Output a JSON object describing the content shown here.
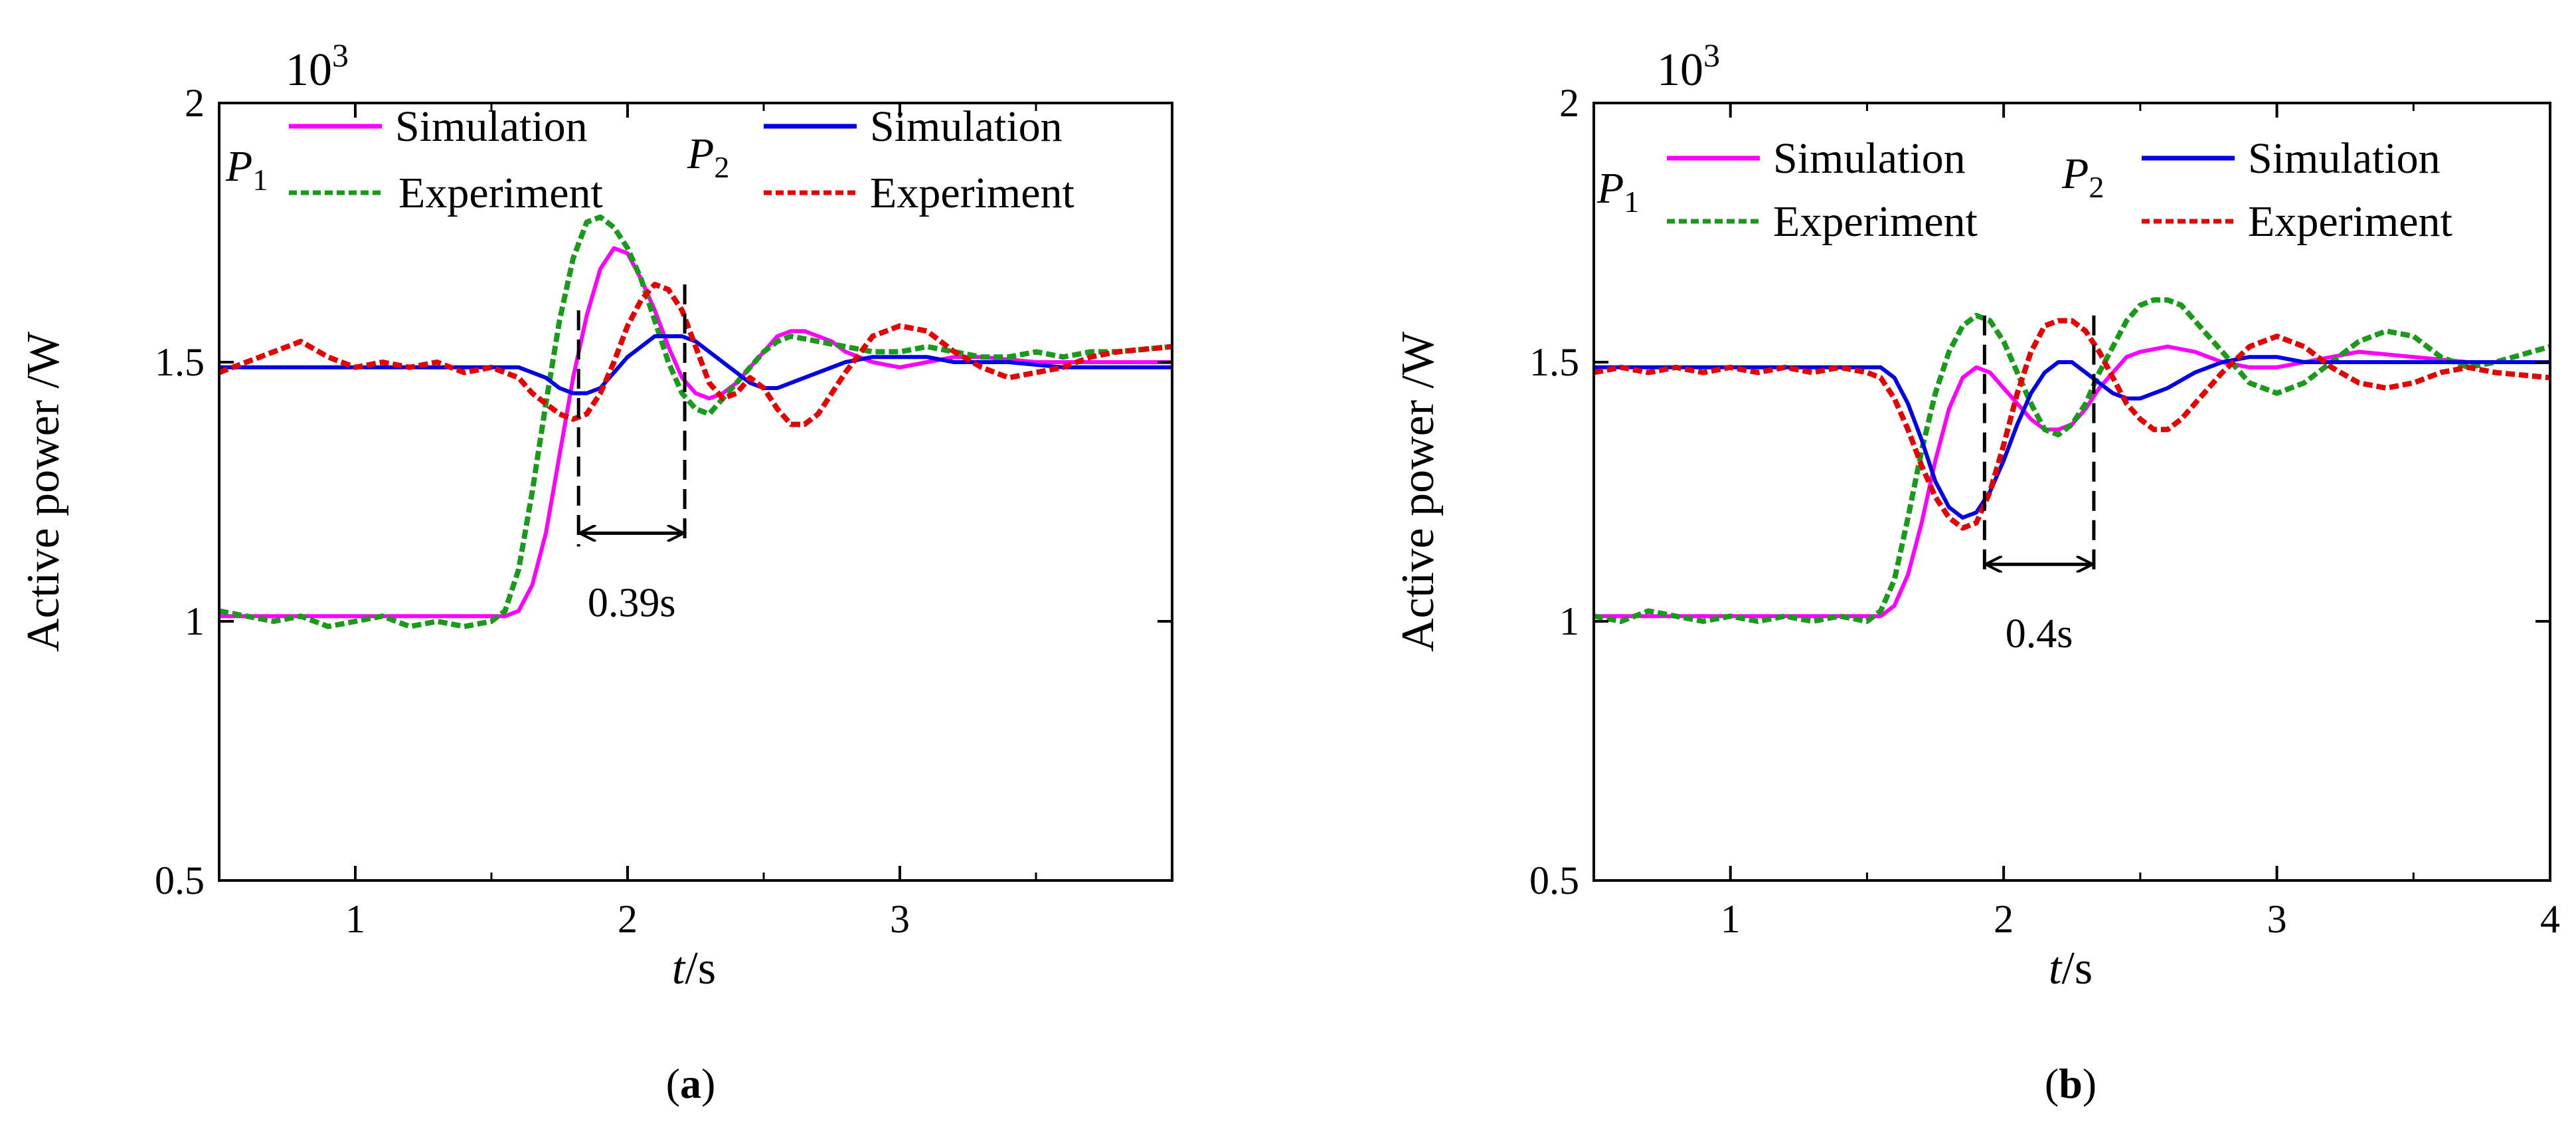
{
  "chart_data": [
    {
      "type": "line",
      "caption_open": "(",
      "caption_letter": "a",
      "caption_close": ")",
      "ylabel": "Active power /W",
      "xlabel_var": "t",
      "xlabel_unit": "/s",
      "y_exponent_base": "10",
      "y_exponent_power": "3",
      "xlim": [
        0.5,
        4.0
      ],
      "ylim": [
        0.5,
        2.0
      ],
      "xticks": [
        1,
        2,
        3
      ],
      "xtick_labels": [
        "1",
        "2",
        "3"
      ],
      "yticks": [
        0.5,
        1,
        1.5,
        2
      ],
      "ytick_labels": [
        "0.5",
        "1",
        "1.5",
        "2"
      ],
      "legend_groups": [
        {
          "symbol": "P",
          "sub": "1",
          "entries": [
            "Simulation",
            "Experiment"
          ]
        },
        {
          "symbol": "P",
          "sub": "2",
          "entries": [
            "Simulation",
            "Experiment"
          ]
        }
      ],
      "annotation": {
        "text": "0.39s",
        "x_start": 1.82,
        "x_end": 2.21,
        "y_arrow": 1.17
      },
      "series": [
        {
          "name": "P1 Simulation",
          "color": "#ff00ff",
          "style": "solid",
          "x": [
            0.5,
            1.55,
            1.6,
            1.65,
            1.7,
            1.75,
            1.8,
            1.85,
            1.9,
            1.95,
            2.0,
            2.05,
            2.1,
            2.15,
            2.2,
            2.25,
            2.3,
            2.35,
            2.4,
            2.45,
            2.5,
            2.55,
            2.6,
            2.65,
            2.7,
            2.75,
            2.8,
            2.9,
            3.0,
            3.1,
            3.2,
            3.3,
            3.5,
            3.7,
            4.0
          ],
          "y": [
            1.01,
            1.01,
            1.02,
            1.07,
            1.17,
            1.32,
            1.47,
            1.59,
            1.68,
            1.72,
            1.71,
            1.66,
            1.6,
            1.53,
            1.47,
            1.44,
            1.43,
            1.44,
            1.46,
            1.49,
            1.52,
            1.55,
            1.56,
            1.56,
            1.55,
            1.54,
            1.52,
            1.5,
            1.49,
            1.5,
            1.51,
            1.51,
            1.5,
            1.5,
            1.5
          ]
        },
        {
          "name": "P1 Experiment",
          "color": "#1a9a1a",
          "style": "dashed",
          "x": [
            0.5,
            0.6,
            0.7,
            0.8,
            0.9,
            1.0,
            1.1,
            1.2,
            1.3,
            1.4,
            1.5,
            1.55,
            1.6,
            1.65,
            1.7,
            1.75,
            1.8,
            1.85,
            1.9,
            1.95,
            2.0,
            2.05,
            2.1,
            2.15,
            2.2,
            2.25,
            2.3,
            2.35,
            2.4,
            2.45,
            2.5,
            2.55,
            2.6,
            2.7,
            2.8,
            2.9,
            3.0,
            3.1,
            3.2,
            3.3,
            3.4,
            3.5,
            3.6,
            3.7,
            3.8,
            4.0
          ],
          "y": [
            1.02,
            1.01,
            1.0,
            1.01,
            0.99,
            1.0,
            1.01,
            0.99,
            1.0,
            0.99,
            1.0,
            1.02,
            1.1,
            1.25,
            1.42,
            1.58,
            1.7,
            1.77,
            1.78,
            1.76,
            1.72,
            1.66,
            1.58,
            1.5,
            1.44,
            1.41,
            1.4,
            1.43,
            1.46,
            1.49,
            1.52,
            1.54,
            1.55,
            1.54,
            1.53,
            1.52,
            1.52,
            1.53,
            1.52,
            1.51,
            1.51,
            1.52,
            1.51,
            1.52,
            1.52,
            1.53
          ]
        },
        {
          "name": "P2 Simulation",
          "color": "#0000e6",
          "style": "solid",
          "x": [
            0.5,
            1.5,
            1.6,
            1.65,
            1.7,
            1.75,
            1.8,
            1.85,
            1.9,
            1.95,
            2.0,
            2.05,
            2.1,
            2.15,
            2.2,
            2.25,
            2.3,
            2.35,
            2.4,
            2.45,
            2.5,
            2.55,
            2.6,
            2.7,
            2.8,
            2.9,
            3.0,
            3.1,
            3.2,
            3.4,
            3.6,
            3.8,
            4.0
          ],
          "y": [
            1.49,
            1.49,
            1.49,
            1.48,
            1.47,
            1.45,
            1.44,
            1.44,
            1.45,
            1.48,
            1.51,
            1.53,
            1.55,
            1.55,
            1.55,
            1.54,
            1.52,
            1.5,
            1.48,
            1.46,
            1.45,
            1.45,
            1.46,
            1.48,
            1.5,
            1.51,
            1.51,
            1.51,
            1.5,
            1.5,
            1.49,
            1.49,
            1.49
          ]
        },
        {
          "name": "P2 Experiment",
          "color": "#e60000",
          "style": "dashed",
          "x": [
            0.5,
            0.6,
            0.7,
            0.8,
            0.9,
            1.0,
            1.1,
            1.2,
            1.3,
            1.4,
            1.5,
            1.55,
            1.6,
            1.65,
            1.7,
            1.75,
            1.8,
            1.85,
            1.9,
            1.95,
            2.0,
            2.05,
            2.1,
            2.15,
            2.2,
            2.25,
            2.3,
            2.35,
            2.4,
            2.45,
            2.5,
            2.55,
            2.6,
            2.65,
            2.7,
            2.8,
            2.9,
            3.0,
            3.1,
            3.2,
            3.3,
            3.4,
            3.5,
            3.6,
            3.7,
            3.8,
            4.0
          ],
          "y": [
            1.48,
            1.5,
            1.52,
            1.54,
            1.51,
            1.49,
            1.5,
            1.49,
            1.5,
            1.48,
            1.49,
            1.48,
            1.47,
            1.44,
            1.42,
            1.4,
            1.39,
            1.4,
            1.44,
            1.5,
            1.57,
            1.62,
            1.65,
            1.64,
            1.6,
            1.53,
            1.46,
            1.43,
            1.44,
            1.47,
            1.45,
            1.41,
            1.38,
            1.38,
            1.4,
            1.48,
            1.55,
            1.57,
            1.56,
            1.52,
            1.49,
            1.47,
            1.48,
            1.49,
            1.51,
            1.52,
            1.53
          ]
        }
      ]
    },
    {
      "type": "line",
      "caption_open": "(",
      "caption_letter": "b",
      "caption_close": ")",
      "ylabel": "Active power /W",
      "xlabel_var": "t",
      "xlabel_unit": "/s",
      "y_exponent_base": "10",
      "y_exponent_power": "3",
      "xlim": [
        0.5,
        4.0
      ],
      "ylim": [
        0.5,
        2.0
      ],
      "xticks": [
        1,
        2,
        3,
        4
      ],
      "xtick_labels": [
        "1",
        "2",
        "3",
        "4"
      ],
      "yticks": [
        0.5,
        1,
        1.5,
        2
      ],
      "ytick_labels": [
        "0.5",
        "1",
        "1.5",
        "2"
      ],
      "legend_groups": [
        {
          "symbol": "P",
          "sub": "1",
          "entries": [
            "Simulation",
            "Experiment"
          ]
        },
        {
          "symbol": "P",
          "sub": "2",
          "entries": [
            "Simulation",
            "Experiment"
          ]
        }
      ],
      "annotation": {
        "text": "0.4s",
        "x_start": 1.93,
        "x_end": 2.33,
        "y_arrow": 1.11
      },
      "series": [
        {
          "name": "P1 Simulation",
          "color": "#ff00ff",
          "style": "solid",
          "x": [
            0.5,
            1.55,
            1.6,
            1.65,
            1.7,
            1.75,
            1.8,
            1.85,
            1.9,
            1.95,
            2.0,
            2.05,
            2.1,
            2.15,
            2.2,
            2.25,
            2.3,
            2.35,
            2.4,
            2.45,
            2.5,
            2.6,
            2.7,
            2.8,
            2.9,
            3.0,
            3.1,
            3.2,
            3.3,
            3.5,
            3.7,
            4.0
          ],
          "y": [
            1.01,
            1.01,
            1.03,
            1.09,
            1.19,
            1.31,
            1.41,
            1.47,
            1.49,
            1.48,
            1.45,
            1.42,
            1.39,
            1.37,
            1.37,
            1.38,
            1.41,
            1.45,
            1.48,
            1.51,
            1.52,
            1.53,
            1.52,
            1.5,
            1.49,
            1.49,
            1.5,
            1.51,
            1.52,
            1.51,
            1.5,
            1.5
          ]
        },
        {
          "name": "P1 Experiment",
          "color": "#1a9a1a",
          "style": "dashed",
          "x": [
            0.5,
            0.6,
            0.7,
            0.8,
            0.9,
            1.0,
            1.1,
            1.2,
            1.3,
            1.4,
            1.5,
            1.55,
            1.6,
            1.65,
            1.7,
            1.75,
            1.8,
            1.85,
            1.9,
            1.95,
            2.0,
            2.05,
            2.1,
            2.15,
            2.2,
            2.25,
            2.3,
            2.35,
            2.4,
            2.45,
            2.5,
            2.55,
            2.6,
            2.65,
            2.7,
            2.8,
            2.9,
            3.0,
            3.1,
            3.2,
            3.3,
            3.4,
            3.5,
            3.6,
            3.7,
            3.8,
            4.0
          ],
          "y": [
            1.01,
            1.0,
            1.02,
            1.01,
            1.0,
            1.01,
            1.0,
            1.01,
            1.0,
            1.01,
            1.0,
            1.02,
            1.08,
            1.2,
            1.33,
            1.44,
            1.52,
            1.57,
            1.59,
            1.58,
            1.54,
            1.48,
            1.42,
            1.37,
            1.36,
            1.38,
            1.42,
            1.48,
            1.53,
            1.58,
            1.61,
            1.62,
            1.62,
            1.61,
            1.58,
            1.52,
            1.46,
            1.44,
            1.46,
            1.5,
            1.54,
            1.56,
            1.55,
            1.51,
            1.49,
            1.5,
            1.53
          ]
        },
        {
          "name": "P2 Simulation",
          "color": "#0000e6",
          "style": "solid",
          "x": [
            0.5,
            1.55,
            1.6,
            1.65,
            1.7,
            1.75,
            1.8,
            1.85,
            1.9,
            1.95,
            2.0,
            2.05,
            2.1,
            2.15,
            2.2,
            2.25,
            2.3,
            2.35,
            2.4,
            2.45,
            2.5,
            2.55,
            2.6,
            2.7,
            2.8,
            2.9,
            3.0,
            3.1,
            3.2,
            3.4,
            3.6,
            4.0
          ],
          "y": [
            1.49,
            1.49,
            1.47,
            1.42,
            1.35,
            1.27,
            1.22,
            1.2,
            1.21,
            1.25,
            1.31,
            1.38,
            1.44,
            1.48,
            1.5,
            1.5,
            1.48,
            1.46,
            1.44,
            1.43,
            1.43,
            1.44,
            1.45,
            1.48,
            1.5,
            1.51,
            1.51,
            1.5,
            1.5,
            1.5,
            1.5,
            1.5
          ]
        },
        {
          "name": "P2 Experiment",
          "color": "#e60000",
          "style": "dashed",
          "x": [
            0.5,
            0.6,
            0.7,
            0.8,
            0.9,
            1.0,
            1.1,
            1.2,
            1.3,
            1.4,
            1.5,
            1.55,
            1.6,
            1.65,
            1.7,
            1.75,
            1.8,
            1.85,
            1.9,
            1.95,
            2.0,
            2.05,
            2.1,
            2.15,
            2.2,
            2.25,
            2.3,
            2.35,
            2.4,
            2.45,
            2.5,
            2.55,
            2.6,
            2.65,
            2.7,
            2.8,
            2.9,
            3.0,
            3.1,
            3.2,
            3.3,
            3.4,
            3.5,
            3.6,
            3.7,
            3.8,
            4.0
          ],
          "y": [
            1.48,
            1.49,
            1.48,
            1.49,
            1.48,
            1.49,
            1.48,
            1.49,
            1.48,
            1.49,
            1.48,
            1.47,
            1.43,
            1.37,
            1.3,
            1.24,
            1.2,
            1.18,
            1.19,
            1.25,
            1.34,
            1.44,
            1.52,
            1.57,
            1.58,
            1.58,
            1.56,
            1.52,
            1.47,
            1.42,
            1.39,
            1.37,
            1.37,
            1.39,
            1.42,
            1.48,
            1.53,
            1.55,
            1.53,
            1.49,
            1.46,
            1.45,
            1.46,
            1.48,
            1.49,
            1.48,
            1.47
          ]
        }
      ]
    }
  ]
}
